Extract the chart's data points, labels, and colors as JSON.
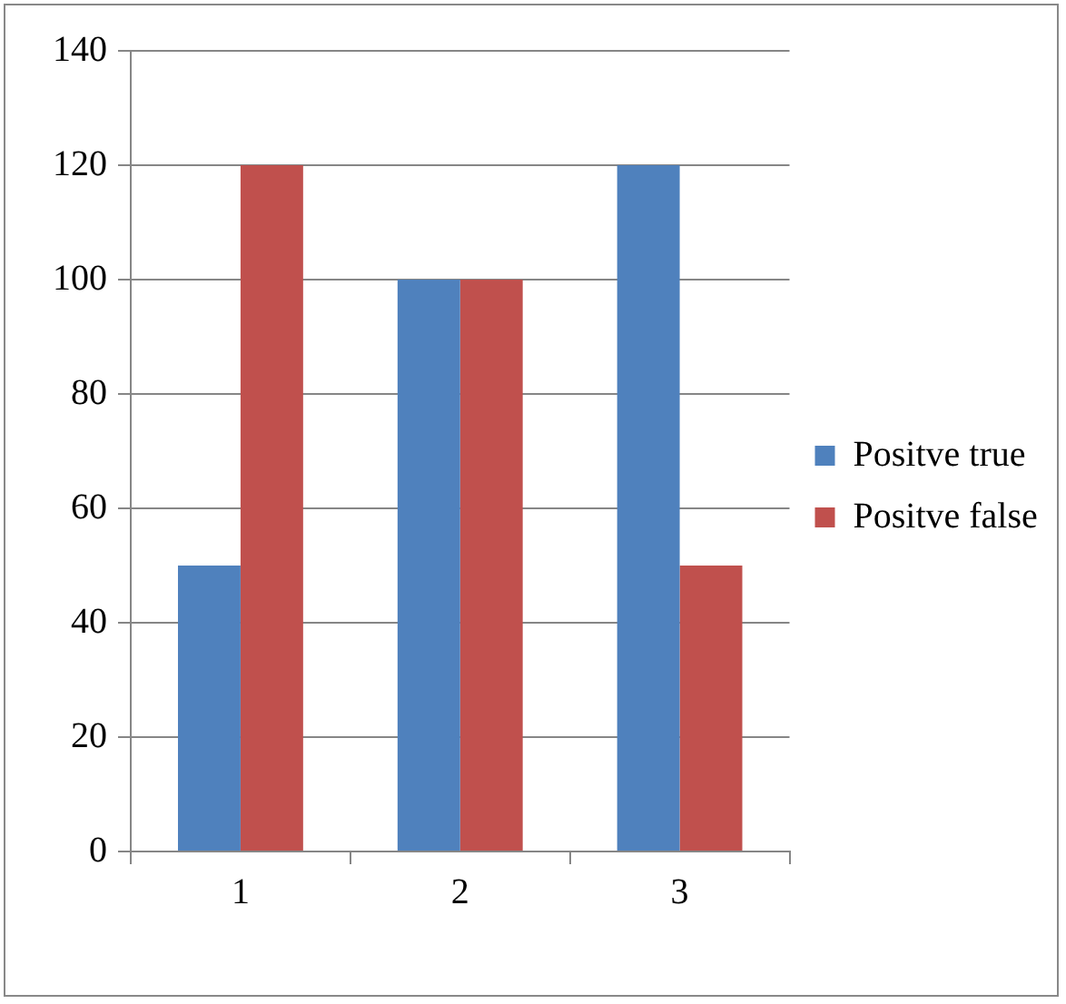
{
  "chart_data": {
    "type": "bar",
    "categories": [
      "1",
      "2",
      "3"
    ],
    "series": [
      {
        "name": "Positve true",
        "color": "#4f81bd",
        "values": [
          50,
          100,
          120
        ]
      },
      {
        "name": "Positve false",
        "color": "#c0504d",
        "values": [
          120,
          100,
          50
        ]
      }
    ],
    "ylim": [
      0,
      140
    ],
    "yticks": [
      0,
      20,
      40,
      60,
      80,
      100,
      120,
      140
    ],
    "grid": "y",
    "legend": "right"
  }
}
